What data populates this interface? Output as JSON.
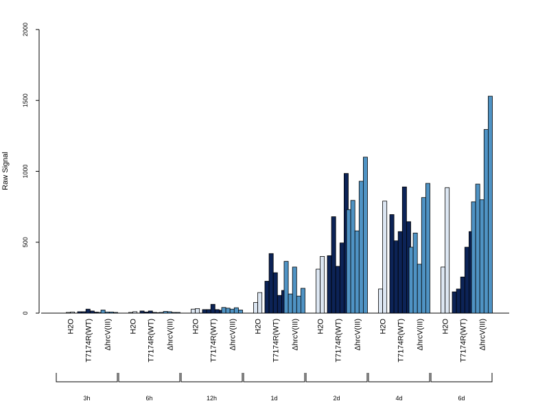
{
  "chart_data": {
    "type": "bar",
    "ylabel": "Raw Signal",
    "ylim": [
      0,
      2000
    ],
    "yticks": [
      "0",
      "500",
      "1000",
      "1500",
      "2000"
    ],
    "grid": false,
    "colors": {
      "H2O": "#dce6f2",
      "T7174R(WT)": "#0c2356",
      "ΔhrcV(III)": "#4f93c4"
    },
    "groups": [
      {
        "label": "3h",
        "categories": [
          {
            "label": "H2O",
            "values": [
              5,
              8
            ]
          },
          {
            "label": "T7174R(WT)",
            "values": [
              10,
              10,
              28,
              15,
              7
            ]
          },
          {
            "label": "ΔhrcV(III)",
            "values": [
              5,
              22,
              8,
              8,
              5
            ]
          }
        ]
      },
      {
        "label": "6h",
        "categories": [
          {
            "label": "H2O",
            "values": [
              5,
              10
            ]
          },
          {
            "label": "T7174R(WT)",
            "values": [
              15,
              8,
              15,
              5,
              3
            ]
          },
          {
            "label": "ΔhrcV(III)",
            "values": [
              5,
              12,
              10,
              5,
              5
            ]
          }
        ]
      },
      {
        "label": "12h",
        "categories": [
          {
            "label": "H2O",
            "values": [
              28,
              32
            ]
          },
          {
            "label": "T7174R(WT)",
            "values": [
              25,
              25,
              62,
              25,
              20
            ]
          },
          {
            "label": "ΔhrcV(III)",
            "values": [
              40,
              35,
              28,
              38,
              22
            ]
          }
        ]
      },
      {
        "label": "1d",
        "categories": [
          {
            "label": "H2O",
            "values": [
              75,
              145
            ]
          },
          {
            "label": "T7174R(WT)",
            "values": [
              225,
              420,
              285,
              125,
              160
            ]
          },
          {
            "label": "ΔhrcV(III)",
            "values": [
              365,
              135,
              325,
              120,
              175
            ]
          }
        ]
      },
      {
        "label": "2d",
        "categories": [
          {
            "label": "H2O",
            "values": [
              310,
              400
            ]
          },
          {
            "label": "T7174R(WT)",
            "values": [
              405,
              680,
              330,
              495,
              985
            ]
          },
          {
            "label": "ΔhrcV(III)",
            "values": [
              730,
              795,
              580,
              930,
              1100
            ]
          }
        ]
      },
      {
        "label": "4d",
        "categories": [
          {
            "label": "H2O",
            "values": [
              170,
              790
            ]
          },
          {
            "label": "T7174R(WT)",
            "values": [
              695,
              510,
              575,
              890,
              645
            ]
          },
          {
            "label": "ΔhrcV(III)",
            "values": [
              465,
              565,
              345,
              815,
              915
            ]
          }
        ]
      },
      {
        "label": "6d",
        "categories": [
          {
            "label": "H2O",
            "values": [
              325,
              885
            ]
          },
          {
            "label": "T7174R(WT)",
            "values": [
              150,
              170,
              255,
              465,
              575
            ]
          },
          {
            "label": "ΔhrcV(III)",
            "values": [
              785,
              910,
              800,
              1295,
              1530
            ]
          }
        ]
      }
    ]
  }
}
